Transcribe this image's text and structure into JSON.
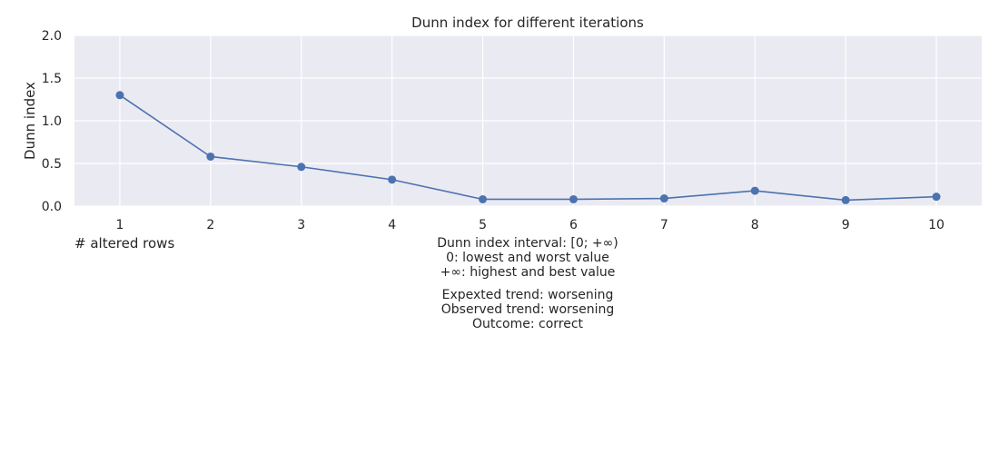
{
  "chart_data": {
    "type": "line",
    "title": "Dunn index for different iterations",
    "xlabel": "# altered rows",
    "ylabel": "Dunn index",
    "x": [
      1,
      2,
      3,
      4,
      5,
      6,
      7,
      8,
      9,
      10
    ],
    "series": [
      {
        "values": [
          1.3,
          0.58,
          0.46,
          0.31,
          0.08,
          0.08,
          0.09,
          0.18,
          0.07,
          0.11
        ]
      }
    ],
    "x_tick_labels": [
      "1",
      "2",
      "3",
      "4",
      "5",
      "6",
      "7",
      "8",
      "9",
      "10"
    ],
    "y_tick_labels": [
      "0.0",
      "0.5",
      "1.0",
      "1.5",
      "2.0"
    ],
    "y_ticks": [
      0.0,
      0.5,
      1.0,
      1.5,
      2.0
    ],
    "xlim": [
      0.5,
      10.5
    ],
    "ylim": [
      0,
      2.0
    ],
    "grid": true,
    "colors": {
      "series": "#4c72b0",
      "plot_background": "#eaeaf2",
      "grid": "#ffffff"
    },
    "annotations": {
      "interval": [
        "Dunn index interval: [0; +∞)",
        "0: lowest and worst value",
        "+∞: highest and best value"
      ],
      "trend": [
        "Expexted trend: worsening",
        "Observed trend: worsening",
        "Outcome: correct"
      ]
    }
  }
}
